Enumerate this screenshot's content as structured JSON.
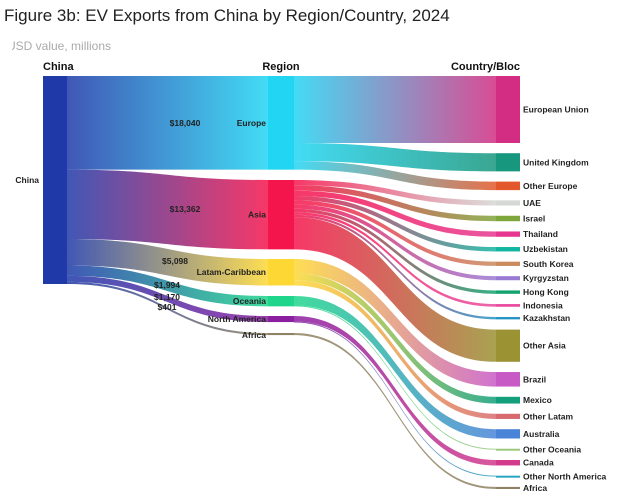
{
  "title": "Figure 3b: EV Exports from China by Region/Country, 2024",
  "subtitle": "USD value, millions",
  "chart_data": {
    "type": "sankey",
    "title": "Figure 3b: EV Exports from China by Region/Country, 2024",
    "subtitle": "USD value, millions",
    "column_headers": {
      "source": "China",
      "region": "Region",
      "country": "Country/Bloc"
    },
    "source": {
      "name": "China",
      "color": "#1f3aa8"
    },
    "regions": [
      {
        "name": "Europe",
        "value": 18040,
        "value_label": "$18,040",
        "color": "#22d5f3"
      },
      {
        "name": "Asia",
        "value": 13362,
        "value_label": "$13,362",
        "color": "#f5154d"
      },
      {
        "name": "Latam-Caribbean",
        "value": 5098,
        "value_label": "$5,098",
        "color": "#fdd835"
      },
      {
        "name": "Oceania",
        "value": 1994,
        "value_label": "$1,994",
        "color": "#1fd58c"
      },
      {
        "name": "North America",
        "value": 1170,
        "value_label": "$1,170",
        "color": "#8a1fa0"
      },
      {
        "name": "Africa",
        "value": 401,
        "value_label": "$401",
        "color": "#8f8262"
      }
    ],
    "countries": [
      {
        "name": "European Union",
        "region": "Europe",
        "value": 12900,
        "color": "#d22d82"
      },
      {
        "name": "United Kingdom",
        "region": "Europe",
        "value": 3500,
        "color": "#17977d"
      },
      {
        "name": "Other Europe",
        "region": "Europe",
        "value": 1640,
        "color": "#e2582a"
      },
      {
        "name": "UAE",
        "region": "Asia",
        "value": 1000,
        "color": "#d5d8d5"
      },
      {
        "name": "Israel",
        "region": "Asia",
        "value": 1050,
        "color": "#7fa63a"
      },
      {
        "name": "Thailand",
        "region": "Asia",
        "value": 1030,
        "color": "#e7368f"
      },
      {
        "name": "Uzbekistan",
        "region": "Asia",
        "value": 850,
        "color": "#12b5a2"
      },
      {
        "name": "South Korea",
        "region": "Asia",
        "value": 820,
        "color": "#c98a5d"
      },
      {
        "name": "Kyrgyzstan",
        "region": "Asia",
        "value": 780,
        "color": "#9a7bd4"
      },
      {
        "name": "Hong Kong",
        "region": "Asia",
        "value": 650,
        "color": "#14a36f"
      },
      {
        "name": "Indonesia",
        "region": "Asia",
        "value": 520,
        "color": "#e94aa0"
      },
      {
        "name": "Kazakhstan",
        "region": "Asia",
        "value": 460,
        "color": "#2596c6"
      },
      {
        "name": "Other Asia",
        "region": "Asia",
        "value": 6202,
        "color": "#9a9233"
      },
      {
        "name": "Brazil",
        "region": "Latam-Caribbean",
        "value": 2800,
        "color": "#c85ac6"
      },
      {
        "name": "Mexico",
        "region": "Latam-Caribbean",
        "value": 1300,
        "color": "#139f7b"
      },
      {
        "name": "Other Latam",
        "region": "Latam-Caribbean",
        "value": 998,
        "color": "#d86a6f"
      },
      {
        "name": "Australia",
        "region": "Oceania",
        "value": 1794,
        "color": "#4a84d8"
      },
      {
        "name": "Other Oceania",
        "region": "Oceania",
        "value": 200,
        "color": "#9bc87a"
      },
      {
        "name": "Canada",
        "region": "North America",
        "value": 1050,
        "color": "#d33a8c"
      },
      {
        "name": "Other North America",
        "region": "North America",
        "value": 120,
        "color": "#2aa4c4"
      },
      {
        "name": "Africa",
        "region": "Africa",
        "value": 401,
        "color": "#8f8262"
      }
    ]
  }
}
